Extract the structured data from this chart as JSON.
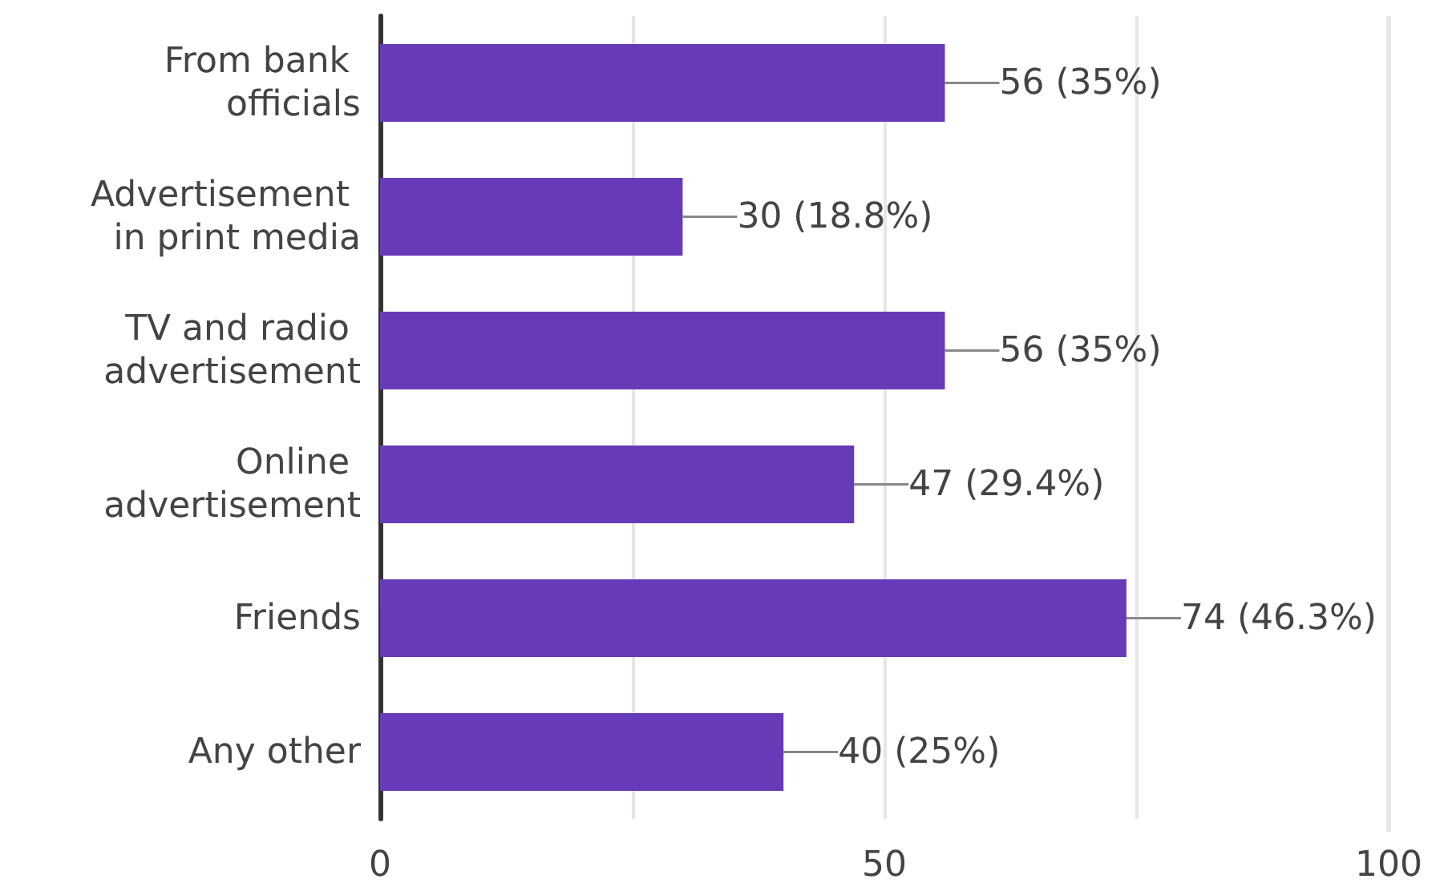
{
  "chart_data": {
    "type": "bar",
    "orientation": "horizontal",
    "categories": [
      "From bank officials",
      "Advertisement in print media",
      "TV and radio advertisement",
      "Online advertisement",
      "Friends",
      "Any other"
    ],
    "values": [
      56,
      30,
      56,
      47,
      74,
      40
    ],
    "value_labels": [
      "56 (35%)",
      "30 (18.8%)",
      "56 (35%)",
      "47 (29.4%)",
      "74 (46.3%)",
      "40 (25%)"
    ],
    "color": "#673ab7",
    "xlim": [
      0,
      100
    ],
    "xticks": [
      0,
      {
        "value": 25,
        "label": null
      },
      50,
      {
        "value": 75,
        "label": null
      },
      100
    ],
    "grid": "x"
  }
}
